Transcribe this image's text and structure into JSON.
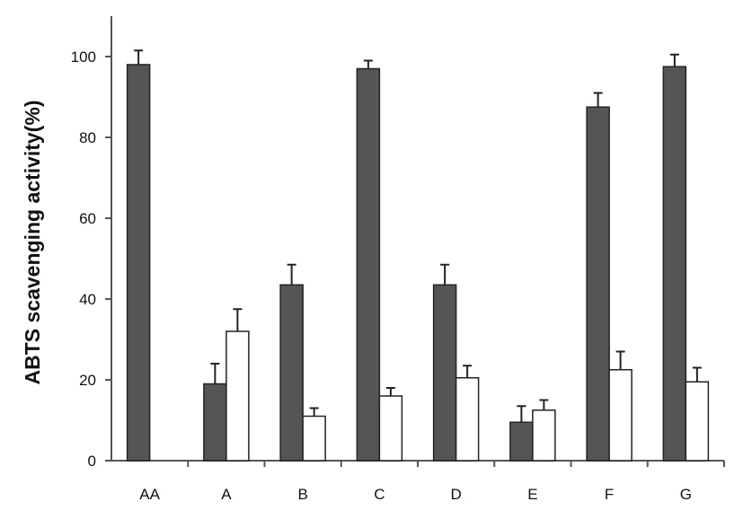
{
  "chart_data": {
    "type": "bar",
    "title": "",
    "xlabel": "",
    "ylabel": "ABTS scavenging activity(%)",
    "ylim": [
      0,
      100
    ],
    "yticks": [
      0,
      20,
      40,
      60,
      80,
      100
    ],
    "grid": false,
    "legend": "none",
    "categories": [
      "AA",
      "A",
      "B",
      "C",
      "D",
      "E",
      "F",
      "G"
    ],
    "series": [
      {
        "color": "#555555",
        "values": [
          98,
          19,
          43.5,
          97,
          43.5,
          9.5,
          87.5,
          97.5
        ],
        "errors": [
          3.5,
          5,
          5,
          2,
          5,
          4,
          3.5,
          3
        ]
      },
      {
        "color": "#ffffff",
        "values": [
          null,
          32,
          11,
          16,
          20.5,
          12.5,
          22.5,
          19.5
        ],
        "errors": [
          null,
          5.5,
          2,
          2,
          3,
          2.5,
          4.5,
          3.5
        ]
      }
    ]
  }
}
